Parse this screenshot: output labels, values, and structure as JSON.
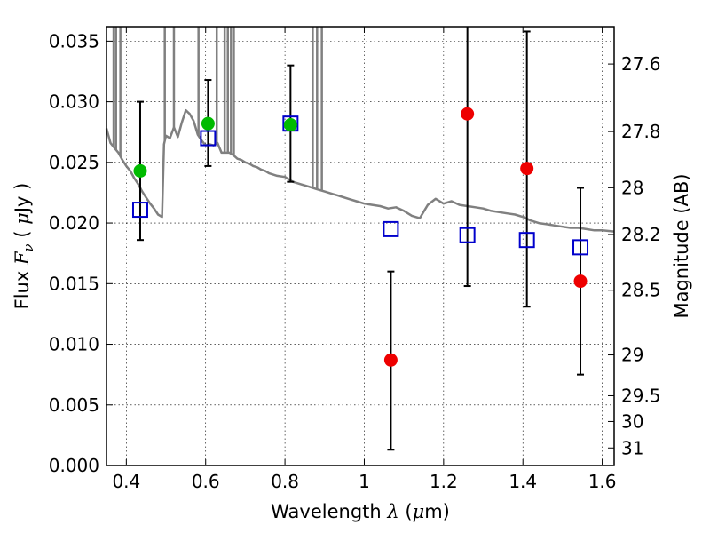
{
  "chart_data": {
    "type": "scatter",
    "xlabel": {
      "prefix": "Wavelength ",
      "symbol": "λ",
      "open": " (",
      "unit_symbol": "μ",
      "unit": "m)"
    },
    "ylabel": {
      "prefix": "Flux ",
      "symbol": "F",
      "subscript": "ν",
      "open": " ( ",
      "unit_symbol": "μ",
      "unit": "Jy )"
    },
    "y2label": "Magnitude (AB)",
    "xlim": [
      0.35,
      1.63
    ],
    "ylim": [
      0.0,
      0.0362
    ],
    "xticks": [
      {
        "value": 0.4,
        "label": "0.4"
      },
      {
        "value": 0.6,
        "label": "0.6"
      },
      {
        "value": 0.8,
        "label": "0.8"
      },
      {
        "value": 1.0,
        "label": "1"
      },
      {
        "value": 1.2,
        "label": "1.2"
      },
      {
        "value": 1.4,
        "label": "1.4"
      },
      {
        "value": 1.6,
        "label": "1.6"
      }
    ],
    "yticks": [
      {
        "value": 0.0,
        "label": "0.000"
      },
      {
        "value": 0.005,
        "label": "0.005"
      },
      {
        "value": 0.01,
        "label": "0.010"
      },
      {
        "value": 0.015,
        "label": "0.015"
      },
      {
        "value": 0.02,
        "label": "0.020"
      },
      {
        "value": 0.025,
        "label": "0.025"
      },
      {
        "value": 0.03,
        "label": "0.030"
      },
      {
        "value": 0.035,
        "label": "0.035"
      }
    ],
    "y2ticks": [
      {
        "value": 27.6,
        "label": "27.6"
      },
      {
        "value": 27.8,
        "label": "27.8"
      },
      {
        "value": 28.0,
        "label": "28"
      },
      {
        "value": 28.2,
        "label": "28.2"
      },
      {
        "value": 28.5,
        "label": "28.5"
      },
      {
        "value": 29.0,
        "label": "29"
      },
      {
        "value": 29.5,
        "label": "29.5"
      },
      {
        "value": 30.0,
        "label": "30"
      },
      {
        "value": 31.0,
        "label": "31"
      }
    ],
    "grid": true,
    "colors": {
      "model": "#808080",
      "detected": "#00bb00",
      "upper": "#ee0000",
      "model_band": "#0000cc",
      "errorbar": "#000000"
    },
    "model_spectrum": [
      [
        0.35,
        0.0278
      ],
      [
        0.36,
        0.0266
      ],
      [
        0.37,
        0.0262
      ],
      [
        0.38,
        0.0258
      ],
      [
        0.39,
        0.0252
      ],
      [
        0.4,
        0.0247
      ],
      [
        0.41,
        0.0243
      ],
      [
        0.42,
        0.0237
      ],
      [
        0.43,
        0.0232
      ],
      [
        0.44,
        0.0226
      ],
      [
        0.45,
        0.0221
      ],
      [
        0.46,
        0.0216
      ],
      [
        0.47,
        0.0212
      ],
      [
        0.48,
        0.0207
      ],
      [
        0.49,
        0.0205
      ],
      [
        0.495,
        0.0265
      ],
      [
        0.5,
        0.0272
      ],
      [
        0.51,
        0.027
      ],
      [
        0.52,
        0.0279
      ],
      [
        0.53,
        0.0271
      ],
      [
        0.54,
        0.0283
      ],
      [
        0.55,
        0.0293
      ],
      [
        0.56,
        0.029
      ],
      [
        0.57,
        0.0284
      ],
      [
        0.58,
        0.0273
      ],
      [
        0.59,
        0.0268
      ],
      [
        0.6,
        0.0264
      ],
      [
        0.61,
        0.0265
      ],
      [
        0.62,
        0.0264
      ],
      [
        0.63,
        0.0266
      ],
      [
        0.64,
        0.0258
      ],
      [
        0.65,
        0.0258
      ],
      [
        0.66,
        0.0258
      ],
      [
        0.67,
        0.0256
      ],
      [
        0.68,
        0.0253
      ],
      [
        0.69,
        0.0252
      ],
      [
        0.7,
        0.025
      ],
      [
        0.71,
        0.0249
      ],
      [
        0.72,
        0.0247
      ],
      [
        0.73,
        0.0246
      ],
      [
        0.74,
        0.0244
      ],
      [
        0.75,
        0.0243
      ],
      [
        0.76,
        0.0241
      ],
      [
        0.78,
        0.0239
      ],
      [
        0.8,
        0.0238
      ],
      [
        0.82,
        0.0234
      ],
      [
        0.84,
        0.0232
      ],
      [
        0.86,
        0.023
      ],
      [
        0.88,
        0.0228
      ],
      [
        0.9,
        0.0226
      ],
      [
        0.92,
        0.0224
      ],
      [
        0.94,
        0.0222
      ],
      [
        0.96,
        0.022
      ],
      [
        0.98,
        0.0218
      ],
      [
        1.0,
        0.0216
      ],
      [
        1.02,
        0.0215
      ],
      [
        1.04,
        0.0214
      ],
      [
        1.06,
        0.0212
      ],
      [
        1.08,
        0.0213
      ],
      [
        1.1,
        0.021
      ],
      [
        1.12,
        0.0206
      ],
      [
        1.14,
        0.0204
      ],
      [
        1.16,
        0.0215
      ],
      [
        1.18,
        0.022
      ],
      [
        1.2,
        0.0216
      ],
      [
        1.22,
        0.0218
      ],
      [
        1.24,
        0.0215
      ],
      [
        1.26,
        0.0214
      ],
      [
        1.28,
        0.0213
      ],
      [
        1.3,
        0.0212
      ],
      [
        1.32,
        0.021
      ],
      [
        1.34,
        0.0209
      ],
      [
        1.36,
        0.0208
      ],
      [
        1.38,
        0.0207
      ],
      [
        1.4,
        0.0205
      ],
      [
        1.42,
        0.0202
      ],
      [
        1.44,
        0.02
      ],
      [
        1.46,
        0.0199
      ],
      [
        1.48,
        0.0198
      ],
      [
        1.5,
        0.0197
      ],
      [
        1.52,
        0.0196
      ],
      [
        1.54,
        0.0196
      ],
      [
        1.56,
        0.0195
      ],
      [
        1.58,
        0.0194
      ],
      [
        1.6,
        0.0194
      ],
      [
        1.63,
        0.0193
      ]
    ],
    "model_spikes": [
      {
        "x": 0.368,
        "y": 0.0362
      },
      {
        "x": 0.374,
        "y": 0.0362
      },
      {
        "x": 0.385,
        "y": 0.0362
      },
      {
        "x": 0.497,
        "y": 0.0362
      },
      {
        "x": 0.52,
        "y": 0.0362
      },
      {
        "x": 0.582,
        "y": 0.0362
      },
      {
        "x": 0.628,
        "y": 0.0362
      },
      {
        "x": 0.648,
        "y": 0.0362
      },
      {
        "x": 0.656,
        "y": 0.0362
      },
      {
        "x": 0.664,
        "y": 0.0362
      },
      {
        "x": 0.671,
        "y": 0.0362
      },
      {
        "x": 0.87,
        "y": 0.0362
      },
      {
        "x": 0.881,
        "y": 0.0362
      },
      {
        "x": 0.893,
        "y": 0.0362
      }
    ],
    "observed_detections": [
      {
        "x": 0.435,
        "y": 0.0243
      },
      {
        "x": 0.606,
        "y": 0.0282
      },
      {
        "x": 0.814,
        "y": 0.0281
      }
    ],
    "observed_limits": [
      {
        "x": 1.067,
        "y": 0.0087
      },
      {
        "x": 1.26,
        "y": 0.029
      },
      {
        "x": 1.41,
        "y": 0.0245
      },
      {
        "x": 1.545,
        "y": 0.0152
      }
    ],
    "model_bands": [
      {
        "x": 0.435,
        "y": 0.0211
      },
      {
        "x": 0.606,
        "y": 0.027
      },
      {
        "x": 0.814,
        "y": 0.0282
      },
      {
        "x": 1.067,
        "y": 0.0195
      },
      {
        "x": 1.26,
        "y": 0.019
      },
      {
        "x": 1.41,
        "y": 0.0186
      },
      {
        "x": 1.545,
        "y": 0.018
      }
    ],
    "errorbars": [
      {
        "x": 0.435,
        "low": 0.0186,
        "high": 0.03
      },
      {
        "x": 0.606,
        "low": 0.0247,
        "high": 0.0318
      },
      {
        "x": 0.814,
        "low": 0.0234,
        "high": 0.033
      },
      {
        "x": 1.067,
        "low": 0.0013,
        "high": 0.016
      },
      {
        "x": 1.26,
        "low": 0.0148,
        "high": 0.0362
      },
      {
        "x": 1.41,
        "low": 0.0131,
        "high": 0.0358
      },
      {
        "x": 1.545,
        "low": 0.0075,
        "high": 0.0229
      }
    ]
  }
}
